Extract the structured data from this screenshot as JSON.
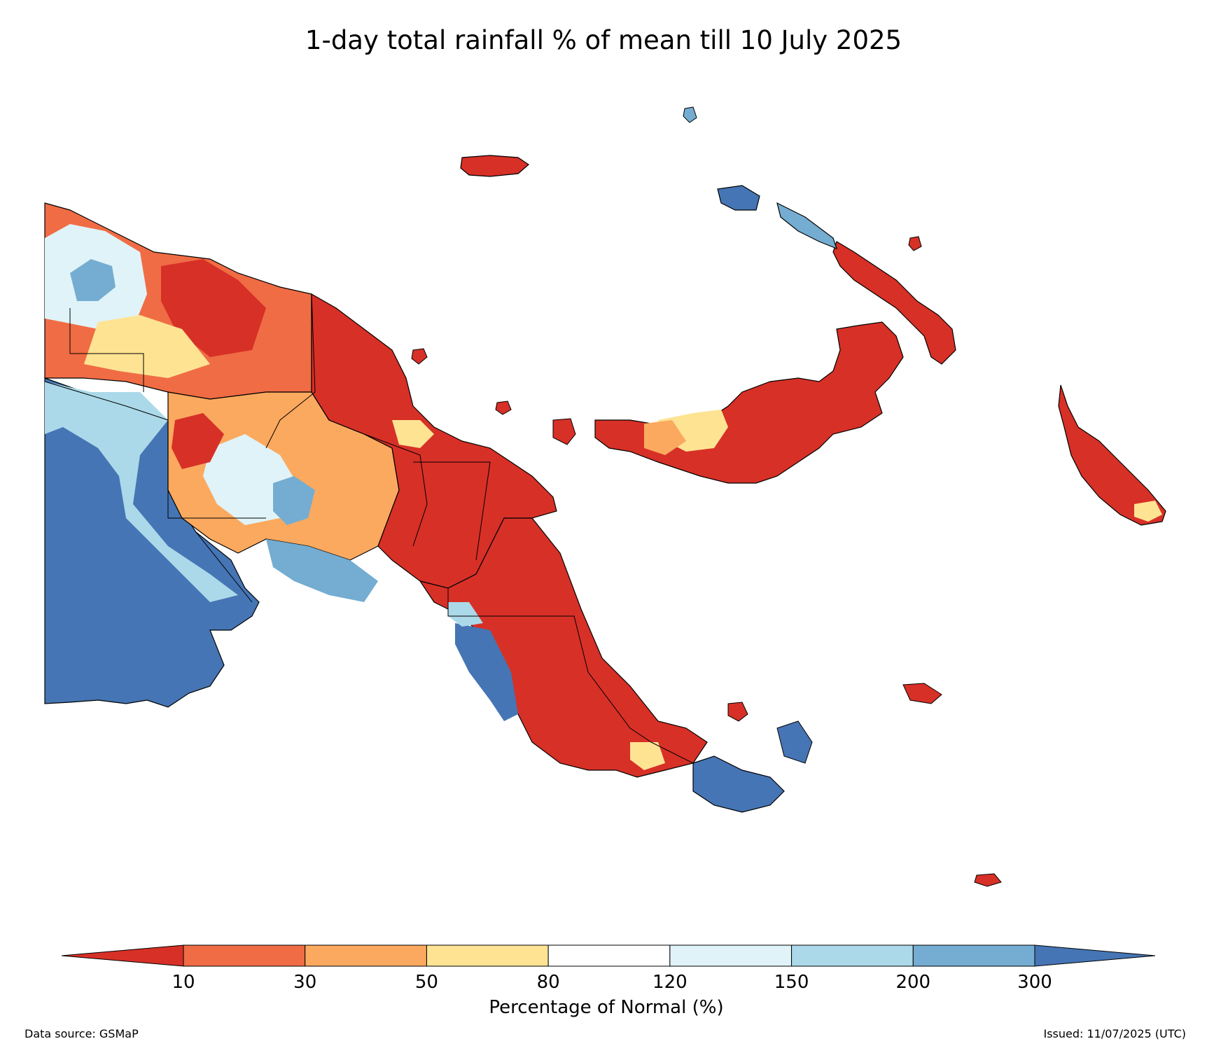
{
  "title": "1-day total rainfall % of mean till 10 July 2025",
  "colorbar": {
    "title": "Percentage of Normal (%)",
    "ticks": [
      "10",
      "30",
      "50",
      "80",
      "120",
      "150",
      "200",
      "300"
    ],
    "colors": [
      "#d73027",
      "#f06c44",
      "#fba95f",
      "#fee393",
      "#ffffff",
      "#e0f3f8",
      "#abd9e9",
      "#74add1",
      "#4575b4"
    ]
  },
  "footer": {
    "source": "Data source: GSMaP",
    "issued": "Issued: 11/07/2025 (UTC)"
  },
  "colors": {
    "dry_extreme": "#d73027",
    "dry": "#f06c44",
    "dry_moderate": "#fba95f",
    "dry_slight": "#fee393",
    "normal": "#ffffff",
    "wet_slight": "#e0f3f8",
    "wet": "#abd9e9",
    "wet_moderate": "#74add1",
    "wet_extreme": "#4575b4"
  }
}
